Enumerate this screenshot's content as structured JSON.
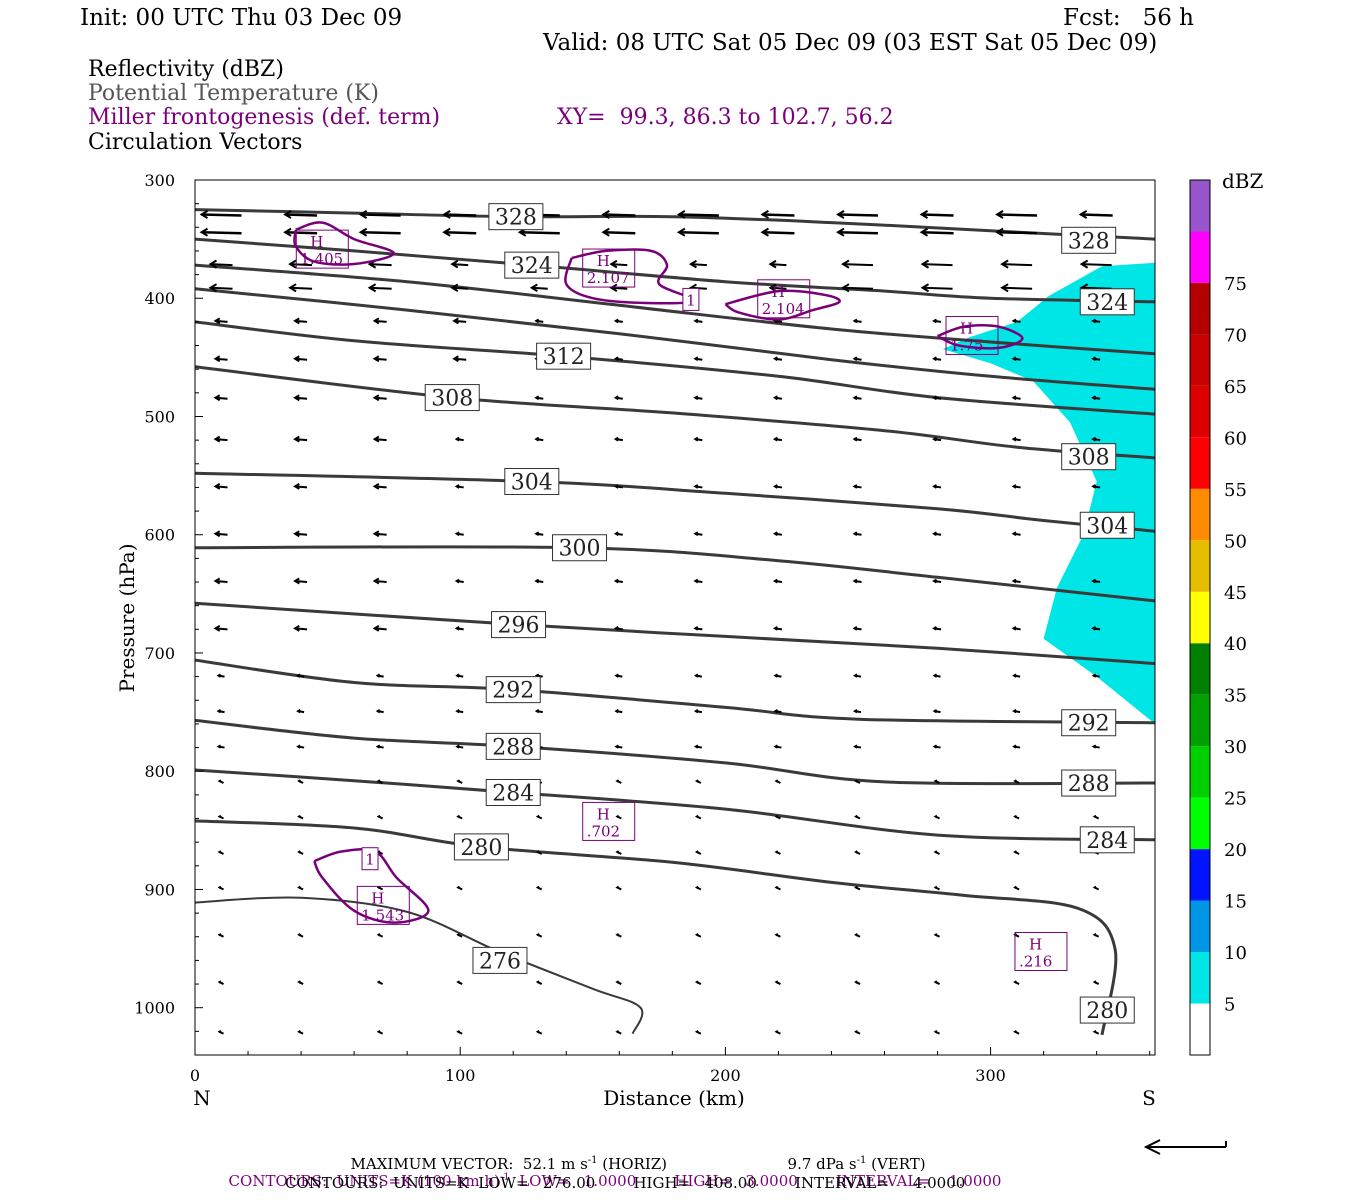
{
  "header": {
    "init": "Init: 00 UTC Thu 03 Dec 09",
    "fcst": "Fcst:   56 h",
    "valid": "Valid: 08 UTC Sat 05 Dec 09 (03 EST Sat 05 Dec 09)"
  },
  "fields": {
    "reflectivity": "Reflectivity (dBZ)",
    "theta": "Potential Temperature (K)",
    "frontogenesis": "Miller frontogenesis (def. term)",
    "xy": "XY=  99.3, 86.3 to 102.7, 56.2",
    "vectors": "Circulation Vectors"
  },
  "colors": {
    "text": "#000000",
    "theta_line": "#3a3a3a",
    "frontogenesis": "#7a007a",
    "reflectivity_5": "#00e5e5",
    "colorbar": [
      "#ffffff",
      "#00e5e5",
      "#0096e6",
      "#0014ff",
      "#00ff00",
      "#00d000",
      "#00a000",
      "#008000",
      "#ffff00",
      "#e6be00",
      "#ff8c00",
      "#ff0000",
      "#dc0000",
      "#c80000",
      "#b40000",
      "#ff00ff",
      "#9955cc"
    ]
  },
  "footer": {
    "max_vector": "MAXIMUM VECTOR:  52.1 m s",
    "max_vector_exp": "-1",
    "max_vector_horiz": " (HORIZ)",
    "vert": "9.7 dPa s",
    "vert_exp": "-1",
    "vert_tail": " (VERT)",
    "contours1_a": "CONTOURS:  UNITS=K (100 km h)",
    "contours1_exp": "-1",
    "contours1_b": "  LOW=   1.0000        HIGH=   3.0000        INTERVAL=    1.0000",
    "contours2": "CONTOURS:  UNITS=K  LOW=   276.00        HIGH=   408.00        INTERVAL=     4.0000"
  },
  "chart_data": {
    "type": "cross-section",
    "xlabel": "Distance (km)",
    "ylabel": "Pressure (hPa)",
    "xlim": [
      0,
      362
    ],
    "ylim": [
      1040,
      300
    ],
    "x_ticks": [
      0,
      100,
      200,
      300
    ],
    "y_ticks": [
      300,
      400,
      500,
      600,
      700,
      800,
      900,
      1000
    ],
    "x_end_labels": {
      "left": "N",
      "right": "S"
    },
    "colorbar": {
      "unit": "dBZ",
      "levels": [
        5,
        10,
        15,
        20,
        25,
        30,
        35,
        40,
        45,
        50,
        55,
        60,
        65,
        70,
        75
      ]
    },
    "theta_contours": [
      {
        "value": 328,
        "labels": [
          {
            "x": 121,
            "p": 331
          },
          {
            "x": 337,
            "p": 351
          }
        ],
        "points": [
          [
            0,
            325
          ],
          [
            60,
            328
          ],
          [
            120,
            331
          ],
          [
            180,
            331
          ],
          [
            240,
            336
          ],
          [
            300,
            343
          ],
          [
            362,
            350
          ]
        ]
      },
      {
        "value": 324,
        "labels": [
          {
            "x": 127,
            "p": 372
          },
          {
            "x": 344,
            "p": 403
          }
        ],
        "points": [
          [
            0,
            350
          ],
          [
            60,
            360
          ],
          [
            127,
            372
          ],
          [
            200,
            386
          ],
          [
            260,
            394
          ],
          [
            300,
            400
          ],
          [
            362,
            403
          ]
        ]
      },
      {
        "value": 320,
        "labels": [],
        "points": [
          [
            0,
            372
          ],
          [
            80,
            386
          ],
          [
            160,
            406
          ],
          [
            240,
            426
          ],
          [
            300,
            437
          ],
          [
            362,
            447
          ]
        ]
      },
      {
        "value": 316,
        "labels": [],
        "points": [
          [
            0,
            392
          ],
          [
            80,
            410
          ],
          [
            160,
            430
          ],
          [
            240,
            452
          ],
          [
            300,
            466
          ],
          [
            362,
            477
          ]
        ]
      },
      {
        "value": 312,
        "labels": [
          {
            "x": 139,
            "p": 449
          }
        ],
        "points": [
          [
            0,
            420
          ],
          [
            60,
            436
          ],
          [
            139,
            449
          ],
          [
            220,
            466
          ],
          [
            280,
            484
          ],
          [
            362,
            498
          ]
        ]
      },
      {
        "value": 308,
        "labels": [
          {
            "x": 97,
            "p": 484
          },
          {
            "x": 337,
            "p": 534
          }
        ],
        "points": [
          [
            0,
            458
          ],
          [
            97,
            484
          ],
          [
            180,
            497
          ],
          [
            260,
            512
          ],
          [
            310,
            526
          ],
          [
            362,
            535
          ]
        ]
      },
      {
        "value": 304,
        "labels": [
          {
            "x": 127,
            "p": 555
          },
          {
            "x": 344,
            "p": 592
          }
        ],
        "points": [
          [
            0,
            548
          ],
          [
            127,
            555
          ],
          [
            200,
            565
          ],
          [
            280,
            578
          ],
          [
            320,
            588
          ],
          [
            362,
            597
          ]
        ]
      },
      {
        "value": 300,
        "labels": [
          {
            "x": 145,
            "p": 611
          }
        ],
        "points": [
          [
            0,
            611
          ],
          [
            145,
            611
          ],
          [
            220,
            622
          ],
          [
            280,
            636
          ],
          [
            362,
            656
          ]
        ]
      },
      {
        "value": 296,
        "labels": [
          {
            "x": 122,
            "p": 676
          }
        ],
        "points": [
          [
            0,
            658
          ],
          [
            122,
            676
          ],
          [
            200,
            686
          ],
          [
            280,
            696
          ],
          [
            362,
            709
          ]
        ]
      },
      {
        "value": 292,
        "labels": [
          {
            "x": 120,
            "p": 731
          },
          {
            "x": 337,
            "p": 759
          }
        ],
        "points": [
          [
            0,
            706
          ],
          [
            60,
            725
          ],
          [
            120,
            731
          ],
          [
            200,
            746
          ],
          [
            250,
            756
          ],
          [
            362,
            759
          ]
        ]
      },
      {
        "value": 288,
        "labels": [
          {
            "x": 120,
            "p": 779
          },
          {
            "x": 337,
            "p": 810
          }
        ],
        "points": [
          [
            0,
            757
          ],
          [
            60,
            772
          ],
          [
            120,
            779
          ],
          [
            200,
            793
          ],
          [
            260,
            809
          ],
          [
            362,
            810
          ]
        ]
      },
      {
        "value": 284,
        "labels": [
          {
            "x": 120,
            "p": 818
          },
          {
            "x": 344,
            "p": 858
          }
        ],
        "points": [
          [
            0,
            799
          ],
          [
            60,
            808
          ],
          [
            120,
            818
          ],
          [
            200,
            832
          ],
          [
            280,
            854
          ],
          [
            362,
            858
          ]
        ]
      },
      {
        "value": 280,
        "labels": [
          {
            "x": 108,
            "p": 864
          },
          {
            "x": 344,
            "p": 1002
          }
        ],
        "points": [
          [
            0,
            842
          ],
          [
            60,
            848
          ],
          [
            108,
            864
          ],
          [
            180,
            877
          ],
          [
            240,
            894
          ],
          [
            290,
            905
          ],
          [
            333,
            916
          ],
          [
            347,
            951
          ],
          [
            342,
            1023
          ]
        ]
      },
      {
        "value": 276,
        "labels": [
          {
            "x": 115,
            "p": 960
          }
        ],
        "points": [
          [
            0,
            911
          ],
          [
            40,
            907
          ],
          [
            80,
            919
          ],
          [
            115,
            953
          ],
          [
            150,
            984
          ],
          [
            168,
            1000
          ],
          [
            165,
            1022
          ]
        ]
      }
    ],
    "reflectivity_5dbz_region": {
      "points": [
        [
          342,
          373
        ],
        [
          362,
          370
        ],
        [
          362,
          760
        ],
        [
          340,
          720
        ],
        [
          320,
          688
        ],
        [
          325,
          645
        ],
        [
          335,
          600
        ],
        [
          340,
          555
        ],
        [
          330,
          505
        ],
        [
          316,
          470
        ],
        [
          300,
          455
        ],
        [
          282,
          443
        ],
        [
          292,
          433
        ],
        [
          310,
          420
        ],
        [
          322,
          398
        ]
      ]
    },
    "frontogenesis_maxima": [
      {
        "label": "H",
        "value": "1.405",
        "x": 48,
        "p": 361
      },
      {
        "label": "H",
        "value": "2.107",
        "x": 156,
        "p": 377
      },
      {
        "label": "H",
        "value": "2.104",
        "x": 222,
        "p": 403
      },
      {
        "label": "H",
        "value": "1.75",
        "x": 293,
        "p": 434
      },
      {
        "label": "H",
        "value": ".702",
        "x": 156,
        "p": 845
      },
      {
        "label": "H",
        "value": "1.543",
        "x": 71,
        "p": 916
      },
      {
        "label": "H",
        "value": ".216",
        "x": 319,
        "p": 955
      }
    ],
    "frontogenesis_contour_labels": [
      "1",
      "1"
    ]
  }
}
